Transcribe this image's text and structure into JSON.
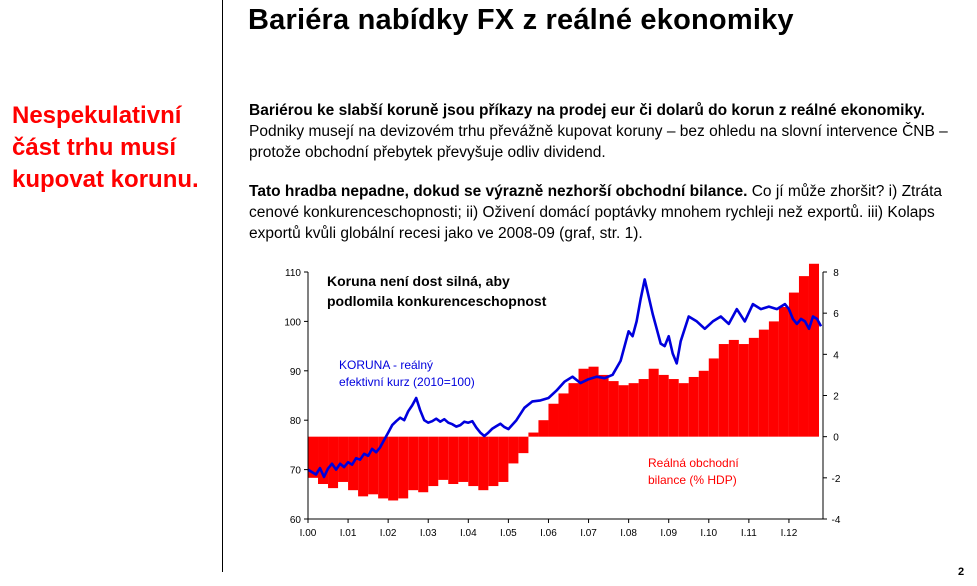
{
  "slide": {
    "title": "Bariéra nabídky FX z reálné ekonomiky",
    "side_note": "Nespekulativní část trhu musí kupovat korunu.",
    "page_number": "2"
  },
  "paragraphs": [
    {
      "bold": "Bariérou ke slabší koruně jsou příkazy na prodej eur či dolarů do korun z reálné ekonomiky.",
      "text": " Podniky musejí na devizovém trhu převážně kupovat koruny – bez ohledu na slovní intervence ČNB – protože obchodní přebytek převyšuje odliv dividend."
    },
    {
      "bold": "Tato hradba nepadne, dokud se výrazně nezhorší obchodní bilance.",
      "text": " Co jí může zhoršit? i) Ztráta cenové konkurenceschopnosti; ii) Oživení domácí poptávky mnohem rychleji než exportů. iii) Kolaps exportů kvůli globální recesi jako ve 2008-09 (graf, str. 1)."
    }
  ],
  "chart_data": {
    "type": "line",
    "title_lines": [
      "Koruna není dost silná, aby",
      "podlomila konkurenceschopnost"
    ],
    "x_ticks": [
      "I.00",
      "I.01",
      "I.02",
      "I.03",
      "I.04",
      "I.05",
      "I.06",
      "I.07",
      "I.08",
      "I.09",
      "I.10",
      "I.11",
      "I.12"
    ],
    "x_start": 2000.0,
    "x_end": 2012.85,
    "y_left": {
      "min": 60,
      "max": 110,
      "ticks": [
        60,
        70,
        80,
        90,
        100,
        110
      ]
    },
    "y_right": {
      "min": -4,
      "max": 8,
      "ticks": [
        -4,
        -2,
        0,
        2,
        4,
        6,
        8
      ]
    },
    "colors": {
      "koruna": "#0000dd",
      "trade": "#ff0000"
    },
    "series": [
      {
        "name": "KORUNA - reálný efektivní kurz (2010=100)",
        "label_lines": [
          "KORUNA - reálný",
          "efektivní kurz (2010=100)"
        ],
        "axis": "left",
        "x": [
          2000.0,
          2000.1,
          2000.2,
          2000.3,
          2000.4,
          2000.5,
          2000.6,
          2000.7,
          2000.8,
          2000.9,
          2001.0,
          2001.1,
          2001.2,
          2001.3,
          2001.4,
          2001.5,
          2001.6,
          2001.7,
          2001.8,
          2001.9,
          2002.0,
          2002.1,
          2002.2,
          2002.3,
          2002.4,
          2002.5,
          2002.6,
          2002.7,
          2002.8,
          2002.9,
          2003.0,
          2003.1,
          2003.2,
          2003.3,
          2003.4,
          2003.5,
          2003.6,
          2003.7,
          2003.8,
          2003.9,
          2004.0,
          2004.1,
          2004.2,
          2004.3,
          2004.4,
          2004.5,
          2004.6,
          2004.7,
          2004.8,
          2004.9,
          2005.0,
          2005.2,
          2005.4,
          2005.6,
          2005.8,
          2006.0,
          2006.2,
          2006.4,
          2006.6,
          2006.8,
          2007.0,
          2007.2,
          2007.4,
          2007.6,
          2007.8,
          2008.0,
          2008.1,
          2008.2,
          2008.3,
          2008.4,
          2008.5,
          2008.6,
          2008.7,
          2008.8,
          2008.9,
          2009.0,
          2009.1,
          2009.2,
          2009.3,
          2009.5,
          2009.7,
          2009.9,
          2010.1,
          2010.3,
          2010.5,
          2010.7,
          2010.9,
          2011.1,
          2011.3,
          2011.5,
          2011.7,
          2011.9,
          2012.0,
          2012.1,
          2012.2,
          2012.3,
          2012.4,
          2012.5,
          2012.6,
          2012.7,
          2012.8
        ],
        "y": [
          70.0,
          69.5,
          69.0,
          70.3,
          68.5,
          70.2,
          71.2,
          70.0,
          71.2,
          70.5,
          71.5,
          71.0,
          72.3,
          72.0,
          73.2,
          72.8,
          74.2,
          73.5,
          74.5,
          76.0,
          77.5,
          79.0,
          79.8,
          80.5,
          80.0,
          81.8,
          83.0,
          84.5,
          82.0,
          80.0,
          79.5,
          79.8,
          80.3,
          79.7,
          80.2,
          79.5,
          79.2,
          78.7,
          79.0,
          79.7,
          79.5,
          79.8,
          78.5,
          77.5,
          76.8,
          77.5,
          78.3,
          78.8,
          79.3,
          78.6,
          78.2,
          80.0,
          82.5,
          83.8,
          84.0,
          84.5,
          86.0,
          87.8,
          88.8,
          87.5,
          88.3,
          88.8,
          88.5,
          89.2,
          92.0,
          98.0,
          97.0,
          100.0,
          104.5,
          108.5,
          105.0,
          101.5,
          98.5,
          95.5,
          95.0,
          97.0,
          93.5,
          91.5,
          96.0,
          101.0,
          100.0,
          98.5,
          100.0,
          101.0,
          99.5,
          102.5,
          100.0,
          103.5,
          102.5,
          103.0,
          102.5,
          103.5,
          102.5,
          100.5,
          99.5,
          100.5,
          100.0,
          98.5,
          101.0,
          100.5,
          99.0
        ]
      },
      {
        "name": "Reálná obchodní bilance (% HDP)",
        "label_lines": [
          "Reálná obchodní",
          "bilance (% HDP)"
        ],
        "axis": "right",
        "x": [
          2000.0,
          2000.25,
          2000.5,
          2000.75,
          2001.0,
          2001.25,
          2001.5,
          2001.75,
          2002.0,
          2002.25,
          2002.5,
          2002.75,
          2003.0,
          2003.25,
          2003.5,
          2003.75,
          2004.0,
          2004.25,
          2004.5,
          2004.75,
          2005.0,
          2005.25,
          2005.5,
          2005.75,
          2006.0,
          2006.25,
          2006.5,
          2006.75,
          2007.0,
          2007.25,
          2007.5,
          2007.75,
          2008.0,
          2008.25,
          2008.5,
          2008.75,
          2009.0,
          2009.25,
          2009.5,
          2009.75,
          2010.0,
          2010.25,
          2010.5,
          2010.75,
          2011.0,
          2011.25,
          2011.5,
          2011.75,
          2012.0,
          2012.25,
          2012.5
        ],
        "y": [
          -2.0,
          -2.3,
          -2.5,
          -2.2,
          -2.6,
          -2.9,
          -2.8,
          -3.0,
          -3.1,
          -3.0,
          -2.6,
          -2.7,
          -2.4,
          -2.1,
          -2.3,
          -2.2,
          -2.4,
          -2.6,
          -2.4,
          -2.2,
          -1.3,
          -0.8,
          0.2,
          0.8,
          1.6,
          2.1,
          2.6,
          3.3,
          3.4,
          3.0,
          2.7,
          2.5,
          2.6,
          2.8,
          3.3,
          3.0,
          2.8,
          2.6,
          2.9,
          3.2,
          3.8,
          4.5,
          4.7,
          4.5,
          4.8,
          5.2,
          5.6,
          6.3,
          7.0,
          7.8,
          8.4
        ]
      }
    ]
  }
}
